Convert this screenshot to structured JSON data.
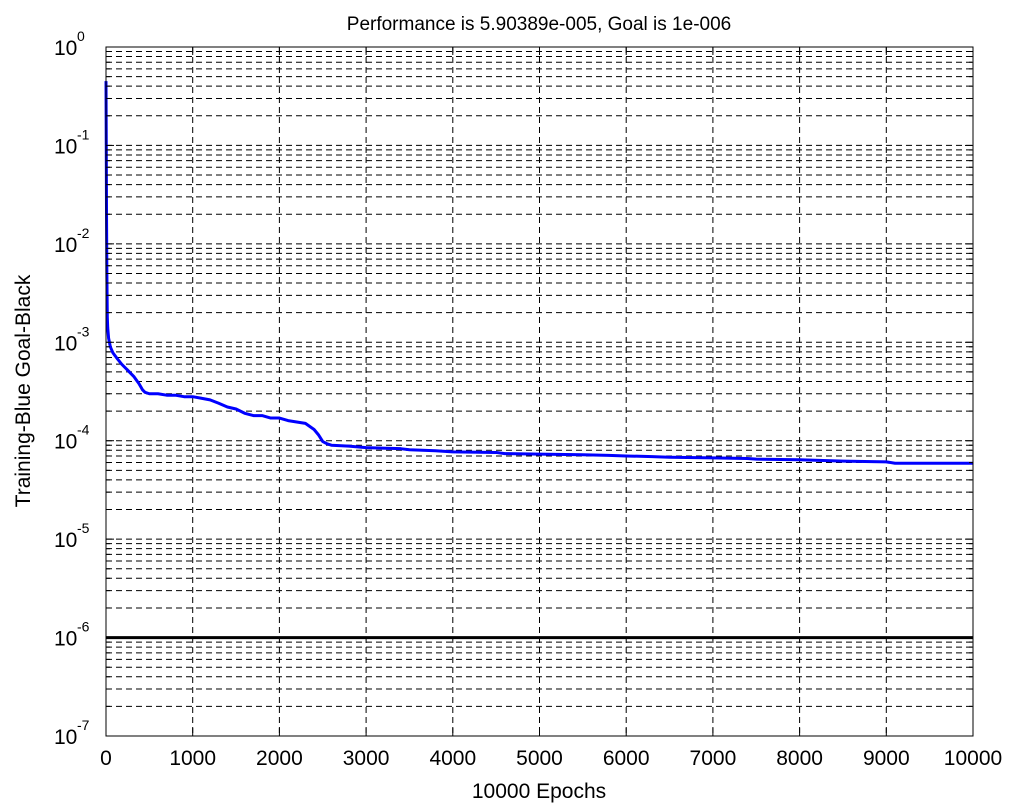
{
  "chart_data": {
    "type": "line",
    "title": "Performance is 5.90389e-005, Goal is 1e-006",
    "xlabel": "10000 Epochs",
    "ylabel": "Training-Blue  Goal-Black",
    "y_scale": "log",
    "xlim": [
      0,
      10000
    ],
    "ylim": [
      1e-07,
      1
    ],
    "grid": true,
    "x_ticks": [
      0,
      1000,
      2000,
      3000,
      4000,
      5000,
      6000,
      7000,
      8000,
      9000,
      10000
    ],
    "y_ticks": [
      {
        "base": "10",
        "exp": "0",
        "value": 1
      },
      {
        "base": "10",
        "exp": "-1",
        "value": 0.1
      },
      {
        "base": "10",
        "exp": "-2",
        "value": 0.01
      },
      {
        "base": "10",
        "exp": "-3",
        "value": 0.001
      },
      {
        "base": "10",
        "exp": "-4",
        "value": 0.0001
      },
      {
        "base": "10",
        "exp": "-5",
        "value": 1e-05
      },
      {
        "base": "10",
        "exp": "-6",
        "value": 1e-06
      },
      {
        "base": "10",
        "exp": "-7",
        "value": 1e-07
      }
    ],
    "series": [
      {
        "color": "#0000ff",
        "x": [
          0,
          3,
          6,
          10,
          15,
          20,
          30,
          50,
          80,
          120,
          180,
          250,
          320,
          380,
          420,
          450,
          500,
          600,
          700,
          800,
          900,
          1000,
          1100,
          1200,
          1300,
          1400,
          1500,
          1600,
          1700,
          1800,
          1900,
          2000,
          2100,
          2200,
          2300,
          2400,
          2450,
          2500,
          2550,
          2600,
          2800,
          3000,
          3400,
          3500,
          3800,
          4000,
          4500,
          4600,
          5000,
          5500,
          5800,
          6000,
          6300,
          6500,
          7000,
          7400,
          7500,
          8000,
          8500,
          9000,
          9100,
          9500,
          10000
        ],
        "y": [
          0.45,
          0.1,
          0.02,
          0.005,
          0.0018,
          0.0014,
          0.0011,
          0.0009,
          0.00078,
          0.0007,
          0.0006,
          0.00052,
          0.00045,
          0.00038,
          0.00033,
          0.00031,
          0.0003,
          0.0003,
          0.00029,
          0.00029,
          0.00028,
          0.00028,
          0.00027,
          0.00026,
          0.00024,
          0.00022,
          0.00021,
          0.00019,
          0.00018,
          0.00018,
          0.00017,
          0.00017,
          0.00016,
          0.000155,
          0.00015,
          0.00013,
          0.000115,
          9.8e-05,
          9.3e-05,
          9e-05,
          8.8e-05,
          8.5e-05,
          8.3e-05,
          8.1e-05,
          7.9e-05,
          7.7e-05,
          7.6e-05,
          7.4e-05,
          7.3e-05,
          7.2e-05,
          7.1e-05,
          7e-05,
          6.9e-05,
          6.8e-05,
          6.7e-05,
          6.6e-05,
          6.5e-05,
          6.4e-05,
          6.2e-05,
          6.1e-05,
          5.9e-05,
          5.9e-05,
          5.9e-05
        ]
      },
      {
        "color": "#000000",
        "x": [
          0,
          10000
        ],
        "y": [
          1e-06,
          1e-06
        ]
      }
    ]
  }
}
